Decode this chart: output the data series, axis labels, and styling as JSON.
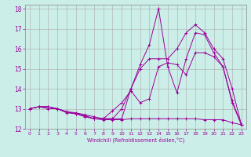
{
  "background_color": "#cceee8",
  "grid_color": "#aaaaaa",
  "line_color": "#990099",
  "xlim": [
    -0.5,
    23.5
  ],
  "ylim": [
    12,
    18.2
  ],
  "yticks": [
    12,
    13,
    14,
    15,
    16,
    17,
    18
  ],
  "xticks": [
    0,
    1,
    2,
    3,
    4,
    5,
    6,
    7,
    8,
    9,
    10,
    11,
    12,
    13,
    14,
    15,
    16,
    17,
    18,
    19,
    20,
    21,
    22,
    23
  ],
  "xlabel": "Windchill (Refroidissement éolien,°C)",
  "series1_y": [
    13.0,
    13.1,
    13.1,
    13.0,
    12.8,
    12.75,
    12.6,
    12.5,
    12.45,
    12.45,
    12.45,
    12.5,
    12.5,
    12.5,
    12.5,
    12.5,
    12.5,
    12.5,
    12.5,
    12.45,
    12.45,
    12.45,
    12.3,
    12.2
  ],
  "series2_y": [
    13.0,
    13.1,
    13.1,
    13.0,
    12.85,
    12.8,
    12.7,
    12.6,
    12.5,
    12.9,
    13.3,
    13.9,
    13.3,
    13.5,
    15.1,
    15.3,
    15.2,
    14.7,
    15.8,
    15.8,
    15.6,
    15.1,
    13.3,
    12.2
  ],
  "series3_y": [
    13.0,
    13.1,
    13.0,
    13.0,
    12.85,
    12.75,
    12.65,
    12.5,
    12.5,
    12.5,
    12.5,
    14.0,
    15.2,
    16.2,
    18.0,
    15.1,
    13.8,
    15.5,
    16.8,
    16.7,
    15.8,
    15.1,
    13.4,
    12.2
  ],
  "series4_y": [
    13.0,
    13.1,
    13.1,
    13.0,
    12.85,
    12.75,
    12.65,
    12.5,
    12.5,
    12.5,
    13.0,
    14.0,
    15.0,
    15.5,
    15.5,
    15.5,
    16.0,
    16.8,
    17.2,
    16.8,
    16.0,
    15.5,
    14.0,
    12.2
  ]
}
